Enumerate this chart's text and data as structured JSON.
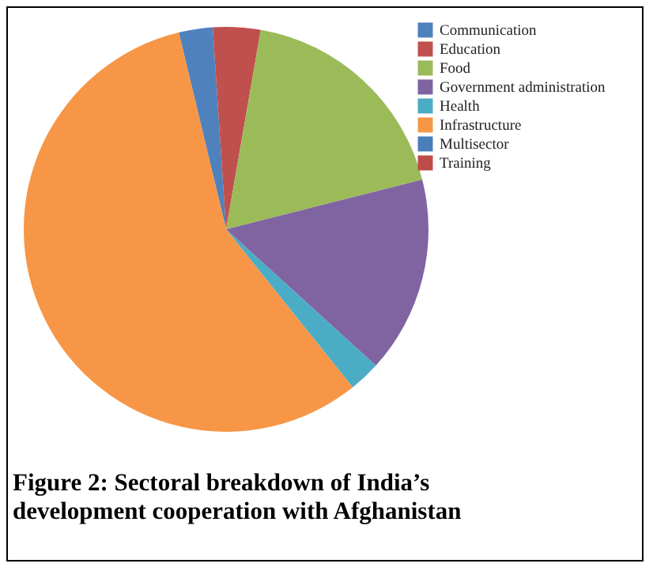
{
  "chart_data": {
    "type": "pie",
    "title": "Figure 2: Sectoral breakdown of India’s development cooperation with Afghanistan",
    "categories": [
      "Communication",
      "Education",
      "Food",
      "Government administration",
      "Health",
      "Infrastructure",
      "Multisector",
      "Training"
    ],
    "values": [
      2.7,
      3.8,
      18.3,
      15.7,
      2.5,
      57,
      0,
      0
    ],
    "colors": [
      "#4f81bd",
      "#c0504d",
      "#9bbb59",
      "#8064a2",
      "#4bacc6",
      "#f79646",
      "#4a7ebb",
      "#be4b48"
    ],
    "legend": "right"
  }
}
